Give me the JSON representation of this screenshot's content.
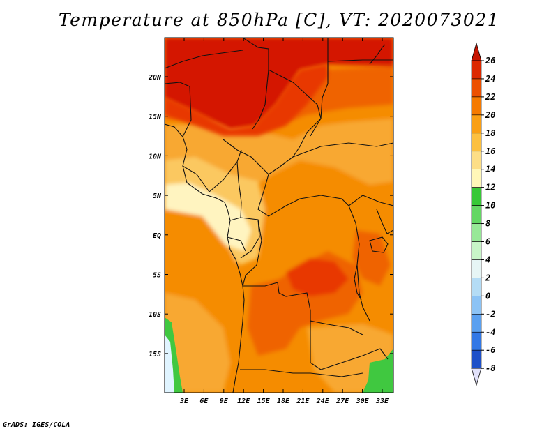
{
  "title": "Temperature at 850hPa [C], VT: 2020073021",
  "footer": "GrADS: IGES/COLA",
  "map": {
    "lat_labels": [
      "20N",
      "15N",
      "10N",
      "5N",
      "EQ",
      "5S",
      "10S",
      "15S"
    ],
    "lon_labels": [
      "3E",
      "6E",
      "9E",
      "12E",
      "15E",
      "18E",
      "21E",
      "24E",
      "27E",
      "30E",
      "33E"
    ]
  },
  "colorbar": {
    "levels": [
      "26",
      "24",
      "22",
      "20",
      "18",
      "16",
      "14",
      "12",
      "10",
      "8",
      "6",
      "4",
      "2",
      "0",
      "-2",
      "-4",
      "-6",
      "-8"
    ],
    "colors": [
      "#c81400",
      "#dc2800",
      "#ec5000",
      "#f57a00",
      "#fa9f14",
      "#fcc040",
      "#fdde86",
      "#fff7b8",
      "#37c837",
      "#64d764",
      "#97e897",
      "#c8f5c8",
      "#e6f5f5",
      "#b4dcf5",
      "#8cc3f5",
      "#5aa0f0",
      "#3278e6",
      "#1e50c8",
      "#1432a0",
      "#0a1478",
      "#e1e1fa"
    ]
  },
  "field_colors": {
    "hot": "#d41800",
    "c24": "#e83800",
    "c22": "#ef6400",
    "c20": "#f58c00",
    "c18": "#f8a830",
    "c16": "#fbc860",
    "c14": "#fde5a0",
    "cool": "#fff4c0",
    "green": "#40c840",
    "lightgreen": "#a0e8a0",
    "pale": "#e0f4ff"
  }
}
